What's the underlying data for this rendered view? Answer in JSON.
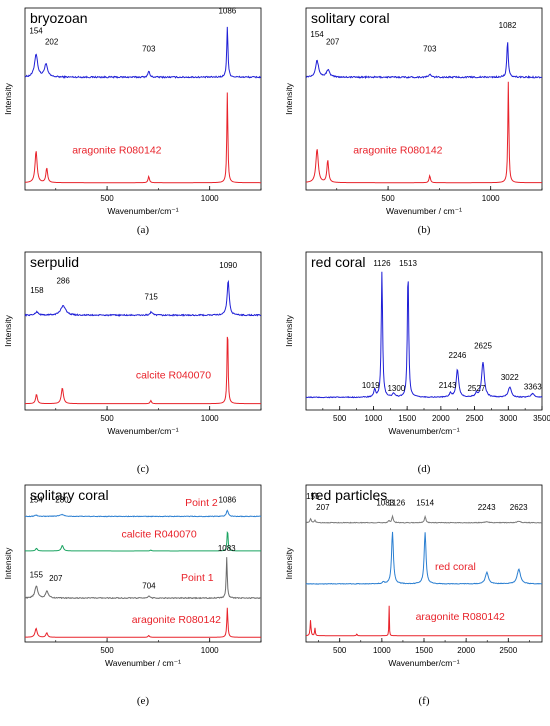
{
  "chart_data": [
    {
      "panel": "(a)",
      "type": "line",
      "title": "bryozoan",
      "xlabel": "Wavenumber/cm⁻¹",
      "ylabel": "Intensity",
      "xlim": [
        100,
        1250
      ],
      "xticks": [
        500,
        1000
      ],
      "series": [
        {
          "color": "#1f1fd6",
          "offset": 0.62,
          "scale": 0.28,
          "noise": 0.004,
          "peaks": [
            [
              154,
              0.45,
              9
            ],
            [
              202,
              0.25,
              9
            ],
            [
              703,
              0.12,
              5
            ],
            [
              1086,
              1.0,
              3.5
            ]
          ]
        },
        {
          "color": "#e8222a",
          "offset": 0.04,
          "scale": 0.5,
          "noise": 0.0,
          "label": "aragonite  R080142",
          "label_x": 330,
          "label_y": 0.2,
          "peaks": [
            [
              154,
              0.35,
              6
            ],
            [
              206,
              0.16,
              5
            ],
            [
              703,
              0.07,
              4
            ],
            [
              1086,
              1.0,
              3
            ]
          ]
        }
      ],
      "annotations": [
        {
          "text": "154",
          "x": 154,
          "y": 0.86
        },
        {
          "text": "202",
          "x": 230,
          "y": 0.8
        },
        {
          "text": "703",
          "x": 703,
          "y": 0.76
        },
        {
          "text": "1086",
          "x": 1086,
          "y": 0.97
        }
      ]
    },
    {
      "panel": "(b)",
      "type": "line",
      "title": "solitary coral",
      "xlabel": "Wavenumber / cm⁻¹",
      "ylabel": "Intensity",
      "xlim": [
        100,
        1250
      ],
      "xticks": [
        500,
        1000
      ],
      "series": [
        {
          "color": "#1f1fd6",
          "offset": 0.62,
          "scale": 0.2,
          "noise": 0.004,
          "peaks": [
            [
              154,
              0.45,
              9
            ],
            [
              207,
              0.2,
              9
            ],
            [
              703,
              0.08,
              6
            ],
            [
              1082,
              1.0,
              4
            ]
          ]
        },
        {
          "color": "#e8222a",
          "offset": 0.04,
          "scale": 0.56,
          "noise": 0.0,
          "label": "aragonite  R080142",
          "label_x": 330,
          "label_y": 0.2,
          "peaks": [
            [
              154,
              0.33,
              7
            ],
            [
              206,
              0.22,
              5
            ],
            [
              703,
              0.07,
              4
            ],
            [
              1086,
              1.0,
              3
            ]
          ]
        }
      ],
      "annotations": [
        {
          "text": "154",
          "x": 154,
          "y": 0.84
        },
        {
          "text": "207",
          "x": 230,
          "y": 0.8
        },
        {
          "text": "703",
          "x": 703,
          "y": 0.76
        },
        {
          "text": "1082",
          "x": 1082,
          "y": 0.89
        }
      ]
    },
    {
      "panel": "(c)",
      "type": "line",
      "title": "serpulid",
      "xlabel": "Wavenumber/cm⁻¹",
      "ylabel": "Intensity",
      "xlim": [
        100,
        1250
      ],
      "xticks": [
        500,
        1000
      ],
      "series": [
        {
          "color": "#1f1fd6",
          "offset": 0.6,
          "scale": 0.22,
          "noise": 0.004,
          "peaks": [
            [
              158,
              0.1,
              8
            ],
            [
              286,
              0.28,
              14
            ],
            [
              715,
              0.1,
              6
            ],
            [
              1090,
              1.0,
              6
            ]
          ]
        },
        {
          "color": "#e8222a",
          "offset": 0.04,
          "scale": 0.5,
          "noise": 0.0,
          "label": "calcite  R040070",
          "label_x": 640,
          "label_y": 0.2,
          "peaks": [
            [
              156,
              0.12,
              5
            ],
            [
              282,
              0.2,
              6
            ],
            [
              713,
              0.04,
              4
            ],
            [
              1087,
              1.0,
              3
            ]
          ]
        }
      ],
      "annotations": [
        {
          "text": "158",
          "x": 158,
          "y": 0.74
        },
        {
          "text": "286",
          "x": 286,
          "y": 0.8
        },
        {
          "text": "715",
          "x": 715,
          "y": 0.7
        },
        {
          "text": "1090",
          "x": 1090,
          "y": 0.9
        }
      ]
    },
    {
      "panel": "(d)",
      "type": "line",
      "title": "red coral",
      "xlabel": "Wavenumber/cm⁻¹",
      "ylabel": "Intensity",
      "xlim": [
        0,
        3500
      ],
      "xticks": [
        500,
        1000,
        1500,
        2000,
        2500,
        3000,
        3500
      ],
      "xticklabels_all": true,
      "series": [
        {
          "color": "#1f1fd6",
          "offset": 0.08,
          "scale": 0.8,
          "noise": 0.003,
          "peaks": [
            [
              1019,
              0.06,
              14
            ],
            [
              1126,
              1.0,
              12
            ],
            [
              1300,
              0.03,
              18
            ],
            [
              1513,
              1.0,
              12
            ],
            [
              2143,
              0.03,
              20
            ],
            [
              2246,
              0.22,
              22
            ],
            [
              2527,
              0.03,
              18
            ],
            [
              2625,
              0.28,
              24
            ],
            [
              3022,
              0.08,
              28
            ],
            [
              3363,
              0.03,
              30
            ]
          ]
        }
      ],
      "annotations": [
        {
          "text": "1126",
          "x": 1126,
          "y": 0.91
        },
        {
          "text": "1513",
          "x": 1513,
          "y": 0.91
        },
        {
          "text": "1019",
          "x": 960,
          "y": 0.14
        },
        {
          "text": "1300",
          "x": 1340,
          "y": 0.12
        },
        {
          "text": "2143",
          "x": 2100,
          "y": 0.14
        },
        {
          "text": "2246",
          "x": 2246,
          "y": 0.33
        },
        {
          "text": "2527",
          "x": 2527,
          "y": 0.12
        },
        {
          "text": "2625",
          "x": 2625,
          "y": 0.39
        },
        {
          "text": "3022",
          "x": 3022,
          "y": 0.19
        },
        {
          "text": "3363",
          "x": 3363,
          "y": 0.13
        }
      ]
    },
    {
      "panel": "(e)",
      "type": "line",
      "title": "solitary coral",
      "xlabel": "Wavenumber / cm⁻¹",
      "ylabel": "Intensity",
      "xlim": [
        100,
        1250
      ],
      "xticks": [
        500,
        1000
      ],
      "series": [
        {
          "color": "#2b7fd1",
          "offset": 0.8,
          "scale": 0.04,
          "noise": 0.002,
          "label": "Point 2",
          "label_x": 880,
          "label_y": 0.865,
          "label_color": "#e8222a",
          "peaks": [
            [
              154,
              0.2,
              8
            ],
            [
              280,
              0.3,
              14
            ],
            [
              1086,
              1.0,
              5
            ]
          ]
        },
        {
          "color": "#19a360",
          "offset": 0.58,
          "scale": 0.14,
          "noise": 0.0,
          "label": "calcite R040070",
          "label_x": 570,
          "label_y": 0.665,
          "label_color": "#e8222a",
          "peaks": [
            [
              156,
              0.12,
              5
            ],
            [
              282,
              0.25,
              6
            ],
            [
              713,
              0.04,
              4
            ],
            [
              1087,
              1.0,
              3
            ]
          ]
        },
        {
          "color": "#6b6b6b",
          "offset": 0.28,
          "scale": 0.26,
          "noise": 0.003,
          "label": "Point 1",
          "label_x": 860,
          "label_y": 0.39,
          "label_color": "#e8222a",
          "peaks": [
            [
              155,
              0.3,
              8
            ],
            [
              207,
              0.18,
              7
            ],
            [
              704,
              0.06,
              5
            ],
            [
              1083,
              1.0,
              3
            ]
          ]
        },
        {
          "color": "#e8222a",
          "offset": 0.03,
          "scale": 0.19,
          "noise": 0.0,
          "label": "aragonite R080142",
          "label_x": 620,
          "label_y": 0.12,
          "label_color": "#e8222a",
          "peaks": [
            [
              154,
              0.3,
              6
            ],
            [
              206,
              0.15,
              5
            ],
            [
              703,
              0.06,
              4
            ],
            [
              1086,
              1.0,
              3
            ]
          ]
        }
      ],
      "annotations": [
        {
          "text": "154",
          "x": 154,
          "y": 0.89
        },
        {
          "text": "280",
          "x": 280,
          "y": 0.89
        },
        {
          "text": "1086",
          "x": 1086,
          "y": 0.89
        },
        {
          "text": "1083",
          "x": 1083,
          "y": 0.58
        },
        {
          "text": "155",
          "x": 155,
          "y": 0.41
        },
        {
          "text": "207",
          "x": 250,
          "y": 0.39
        },
        {
          "text": "704",
          "x": 704,
          "y": 0.34
        }
      ]
    },
    {
      "panel": "(f)",
      "type": "line",
      "title": "red particles",
      "xlabel": "Wavenumber/cm⁻¹",
      "ylabel": "Intensity",
      "xlim": [
        100,
        2900
      ],
      "xticks": [
        500,
        1000,
        1500,
        2000,
        2500
      ],
      "xticklabels_all": true,
      "series": [
        {
          "color": "#7a7a7a",
          "offset": 0.76,
          "scale": 0.05,
          "noise": 0.002,
          "peaks": [
            [
              155,
              0.5,
              9
            ],
            [
              207,
              0.3,
              9
            ],
            [
              1083,
              0.3,
              7
            ],
            [
              1126,
              0.8,
              10
            ],
            [
              1514,
              0.8,
              10
            ],
            [
              2243,
              0.15,
              18
            ],
            [
              2623,
              0.2,
              20
            ]
          ]
        },
        {
          "color": "#2b7fd1",
          "offset": 0.37,
          "scale": 0.33,
          "noise": 0.002,
          "label": "red coral",
          "label_x": 1630,
          "label_y": 0.46,
          "label_color": "#e8222a",
          "peaks": [
            [
              1019,
              0.04,
              12
            ],
            [
              1126,
              1.0,
              13
            ],
            [
              1513,
              1.0,
              13
            ],
            [
              2246,
              0.22,
              22
            ],
            [
              2625,
              0.28,
              24
            ]
          ]
        },
        {
          "color": "#e8222a",
          "offset": 0.04,
          "scale": 0.2,
          "noise": 0.0,
          "label": "aragonite R080142",
          "label_x": 1400,
          "label_y": 0.14,
          "label_color": "#e8222a",
          "peaks": [
            [
              154,
              0.5,
              6
            ],
            [
              206,
              0.25,
              5
            ],
            [
              703,
              0.08,
              4
            ],
            [
              1086,
              1.0,
              3
            ]
          ]
        }
      ],
      "annotations": [
        {
          "text": "155",
          "x": 180,
          "y": 0.91
        },
        {
          "text": "207",
          "x": 300,
          "y": 0.84
        },
        {
          "text": "1083",
          "x": 1040,
          "y": 0.87
        },
        {
          "text": "1126",
          "x": 1175,
          "y": 0.87
        },
        {
          "text": "1514",
          "x": 1514,
          "y": 0.87
        },
        {
          "text": "2243",
          "x": 2243,
          "y": 0.84
        },
        {
          "text": "2623",
          "x": 2623,
          "y": 0.84
        }
      ]
    }
  ]
}
